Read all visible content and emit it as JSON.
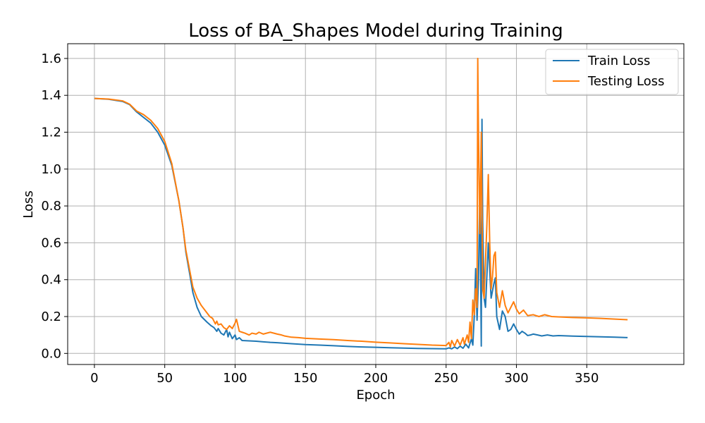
{
  "chart_data": {
    "type": "line",
    "title": "Loss of BA_Shapes Model during Training",
    "xlabel": "Epoch",
    "ylabel": "Loss",
    "xlim": [
      -19,
      419
    ],
    "ylim": [
      -0.06,
      1.68
    ],
    "xticks": [
      0,
      50,
      100,
      150,
      200,
      250,
      300,
      350
    ],
    "yticks": [
      0.0,
      0.2,
      0.4,
      0.6,
      0.8,
      1.0,
      1.2,
      1.4,
      1.6
    ],
    "grid": true,
    "legend_position": "top-right",
    "series": [
      {
        "name": "Train Loss",
        "color": "#1f77b4",
        "points": [
          [
            0,
            1.383
          ],
          [
            10,
            1.379
          ],
          [
            20,
            1.367
          ],
          [
            25,
            1.35
          ],
          [
            30,
            1.31
          ],
          [
            35,
            1.28
          ],
          [
            40,
            1.25
          ],
          [
            45,
            1.2
          ],
          [
            50,
            1.13
          ],
          [
            55,
            1.02
          ],
          [
            60,
            0.83
          ],
          [
            63,
            0.68
          ],
          [
            65,
            0.55
          ],
          [
            68,
            0.42
          ],
          [
            70,
            0.33
          ],
          [
            73,
            0.25
          ],
          [
            76,
            0.2
          ],
          [
            80,
            0.17
          ],
          [
            83,
            0.15
          ],
          [
            85,
            0.14
          ],
          [
            87,
            0.12
          ],
          [
            88,
            0.135
          ],
          [
            90,
            0.11
          ],
          [
            92,
            0.1
          ],
          [
            94,
            0.13
          ],
          [
            95,
            0.09
          ],
          [
            96,
            0.115
          ],
          [
            98,
            0.08
          ],
          [
            100,
            0.1
          ],
          [
            101,
            0.075
          ],
          [
            103,
            0.085
          ],
          [
            105,
            0.07
          ],
          [
            110,
            0.068
          ],
          [
            115,
            0.066
          ],
          [
            120,
            0.063
          ],
          [
            125,
            0.06
          ],
          [
            130,
            0.058
          ],
          [
            140,
            0.053
          ],
          [
            150,
            0.048
          ],
          [
            160,
            0.045
          ],
          [
            170,
            0.042
          ],
          [
            180,
            0.038
          ],
          [
            190,
            0.035
          ],
          [
            200,
            0.033
          ],
          [
            210,
            0.031
          ],
          [
            220,
            0.029
          ],
          [
            230,
            0.027
          ],
          [
            240,
            0.026
          ],
          [
            250,
            0.025
          ],
          [
            252,
            0.03
          ],
          [
            254,
            0.025
          ],
          [
            256,
            0.035
          ],
          [
            258,
            0.026
          ],
          [
            260,
            0.04
          ],
          [
            262,
            0.028
          ],
          [
            264,
            0.05
          ],
          [
            266,
            0.03
          ],
          [
            268,
            0.08
          ],
          [
            269,
            0.045
          ],
          [
            270,
            0.2
          ],
          [
            271,
            0.46
          ],
          [
            272,
            0.18
          ],
          [
            273,
            0.4
          ],
          [
            274,
            0.9
          ],
          [
            275,
            0.04
          ],
          [
            275.5,
            1.27
          ],
          [
            276,
            0.72
          ],
          [
            277,
            0.3
          ],
          [
            278,
            0.25
          ],
          [
            280,
            0.6
          ],
          [
            282,
            0.3
          ],
          [
            284,
            0.38
          ],
          [
            285,
            0.41
          ],
          [
            286,
            0.2
          ],
          [
            288,
            0.13
          ],
          [
            290,
            0.23
          ],
          [
            292,
            0.2
          ],
          [
            294,
            0.12
          ],
          [
            296,
            0.13
          ],
          [
            298,
            0.16
          ],
          [
            300,
            0.13
          ],
          [
            302,
            0.105
          ],
          [
            304,
            0.12
          ],
          [
            306,
            0.11
          ],
          [
            308,
            0.097
          ],
          [
            310,
            0.1
          ],
          [
            312,
            0.105
          ],
          [
            315,
            0.1
          ],
          [
            318,
            0.095
          ],
          [
            322,
            0.1
          ],
          [
            326,
            0.095
          ],
          [
            330,
            0.097
          ],
          [
            340,
            0.094
          ],
          [
            350,
            0.092
          ],
          [
            360,
            0.09
          ],
          [
            370,
            0.088
          ],
          [
            379,
            0.086
          ]
        ]
      },
      {
        "name": "Testing Loss",
        "color": "#ff7f0e",
        "points": [
          [
            0,
            1.383
          ],
          [
            10,
            1.38
          ],
          [
            20,
            1.37
          ],
          [
            25,
            1.352
          ],
          [
            30,
            1.315
          ],
          [
            35,
            1.295
          ],
          [
            40,
            1.265
          ],
          [
            45,
            1.22
          ],
          [
            50,
            1.15
          ],
          [
            55,
            1.03
          ],
          [
            60,
            0.83
          ],
          [
            63,
            0.68
          ],
          [
            65,
            0.56
          ],
          [
            68,
            0.44
          ],
          [
            70,
            0.36
          ],
          [
            73,
            0.3
          ],
          [
            76,
            0.26
          ],
          [
            80,
            0.22
          ],
          [
            82,
            0.2
          ],
          [
            84,
            0.19
          ],
          [
            85,
            0.175
          ],
          [
            86,
            0.16
          ],
          [
            87,
            0.175
          ],
          [
            88,
            0.155
          ],
          [
            90,
            0.16
          ],
          [
            92,
            0.14
          ],
          [
            94,
            0.13
          ],
          [
            96,
            0.15
          ],
          [
            98,
            0.135
          ],
          [
            100,
            0.165
          ],
          [
            101,
            0.185
          ],
          [
            103,
            0.12
          ],
          [
            105,
            0.115
          ],
          [
            107,
            0.11
          ],
          [
            110,
            0.1
          ],
          [
            112,
            0.11
          ],
          [
            115,
            0.105
          ],
          [
            117,
            0.115
          ],
          [
            120,
            0.105
          ],
          [
            125,
            0.115
          ],
          [
            130,
            0.105
          ],
          [
            133,
            0.1
          ],
          [
            135,
            0.095
          ],
          [
            140,
            0.088
          ],
          [
            145,
            0.086
          ],
          [
            150,
            0.082
          ],
          [
            160,
            0.078
          ],
          [
            170,
            0.075
          ],
          [
            180,
            0.07
          ],
          [
            190,
            0.066
          ],
          [
            200,
            0.061
          ],
          [
            210,
            0.057
          ],
          [
            220,
            0.053
          ],
          [
            230,
            0.049
          ],
          [
            240,
            0.045
          ],
          [
            250,
            0.043
          ],
          [
            252,
            0.06
          ],
          [
            253,
            0.035
          ],
          [
            254,
            0.07
          ],
          [
            256,
            0.04
          ],
          [
            258,
            0.075
          ],
          [
            260,
            0.045
          ],
          [
            262,
            0.085
          ],
          [
            263,
            0.05
          ],
          [
            265,
            0.1
          ],
          [
            266,
            0.06
          ],
          [
            267,
            0.17
          ],
          [
            268,
            0.08
          ],
          [
            269,
            0.29
          ],
          [
            270,
            0.21
          ],
          [
            271,
            0.35
          ],
          [
            272,
            0.25
          ],
          [
            272.5,
            1.6
          ],
          [
            273,
            1.2
          ],
          [
            274,
            0.65
          ],
          [
            275,
            1.2
          ],
          [
            276,
            0.35
          ],
          [
            277,
            0.3
          ],
          [
            279,
            0.7
          ],
          [
            280,
            0.97
          ],
          [
            281,
            0.6
          ],
          [
            282,
            0.35
          ],
          [
            283,
            0.42
          ],
          [
            284,
            0.53
          ],
          [
            285,
            0.55
          ],
          [
            286,
            0.33
          ],
          [
            288,
            0.25
          ],
          [
            290,
            0.34
          ],
          [
            292,
            0.26
          ],
          [
            294,
            0.22
          ],
          [
            296,
            0.25
          ],
          [
            298,
            0.28
          ],
          [
            300,
            0.24
          ],
          [
            302,
            0.215
          ],
          [
            305,
            0.235
          ],
          [
            308,
            0.205
          ],
          [
            312,
            0.21
          ],
          [
            316,
            0.2
          ],
          [
            320,
            0.21
          ],
          [
            325,
            0.2
          ],
          [
            330,
            0.198
          ],
          [
            340,
            0.195
          ],
          [
            350,
            0.193
          ],
          [
            360,
            0.19
          ],
          [
            370,
            0.186
          ],
          [
            379,
            0.183
          ]
        ]
      }
    ]
  }
}
